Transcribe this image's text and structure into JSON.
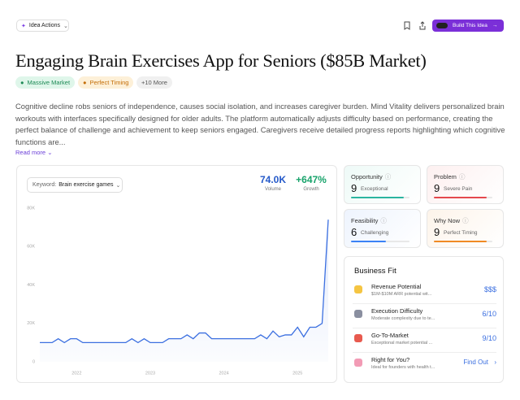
{
  "header": {
    "actions_button": "Idea Actions",
    "build_button": "Build This Idea"
  },
  "title": "Engaging Brain Exercises App for Seniors ($85B Market)",
  "tags": [
    "Massive Market",
    "Perfect Timing",
    "+10 More"
  ],
  "description": "Cognitive decline robs seniors of independence, causes social isolation, and increases caregiver burden. Mind Vitality delivers personalized brain workouts with interfaces specifically designed for older adults. The platform automatically adjusts difficulty based on performance, creating the perfect balance of challenge and achievement to keep seniors engaged. Caregivers receive detailed progress reports highlighting which cognitive functions are...",
  "read_more": "Read more",
  "chart_data": {
    "type": "line",
    "keyword_label": "Keyword:",
    "keyword": "Brain exercise games",
    "volume": "74.0K",
    "volume_label": "Volume",
    "growth": "+647%",
    "growth_label": "Growth",
    "color": "#3b6fe0",
    "values": [
      10000,
      10000,
      10000,
      12000,
      10000,
      12000,
      12000,
      10000,
      10000,
      10000,
      10000,
      10000,
      10000,
      10000,
      10000,
      12000,
      10000,
      12000,
      10000,
      10000,
      10000,
      12000,
      12000,
      12000,
      14000,
      12000,
      15000,
      15000,
      12000,
      12000,
      12000,
      12000,
      12000,
      12000,
      12000,
      12000,
      14000,
      12000,
      16000,
      13000,
      14000,
      14000,
      18000,
      13000,
      18000,
      18000,
      20000,
      74000
    ],
    "xlim": [
      0,
      47
    ],
    "xticks": [
      {
        "value": 6,
        "label": "2022"
      },
      {
        "value": 18,
        "label": "2023"
      },
      {
        "value": 30,
        "label": "2024"
      },
      {
        "value": 42,
        "label": "2025"
      }
    ],
    "ylim": [
      0,
      80000
    ],
    "yticks": [
      0,
      {
        "value": 20000,
        "label": "20K"
      },
      {
        "value": 40000,
        "label": "40K"
      },
      {
        "value": 60000,
        "label": "60K"
      },
      {
        "value": 80000,
        "label": "80K"
      }
    ],
    "grid": false
  },
  "scores": [
    {
      "name": "Opportunity",
      "score": 9,
      "label": "Exceptional",
      "color": "#2bb5a0"
    },
    {
      "name": "Problem",
      "score": 9,
      "label": "Severe Pain",
      "color": "#e5484d"
    },
    {
      "name": "Feasibility",
      "score": 6,
      "label": "Challenging",
      "color": "#3b82f6"
    },
    {
      "name": "Why Now",
      "score": 9,
      "label": "Perfect Timing",
      "color": "#f08a24"
    }
  ],
  "score_max": 10,
  "business_fit": {
    "title": "Business Fit",
    "rows": [
      {
        "name": "Revenue Potential",
        "detail": "$1M-$10M ARR potential wit...",
        "value": "$$$"
      },
      {
        "name": "Execution Difficulty",
        "detail": "Moderate complexity due to te...",
        "value": "6/10"
      },
      {
        "name": "Go-To-Market",
        "detail": "Exceptional market potential ...",
        "value": "9/10"
      },
      {
        "name": "Right for You?",
        "detail": "Ideal for founders with health t...",
        "value": "Find Out"
      }
    ]
  }
}
